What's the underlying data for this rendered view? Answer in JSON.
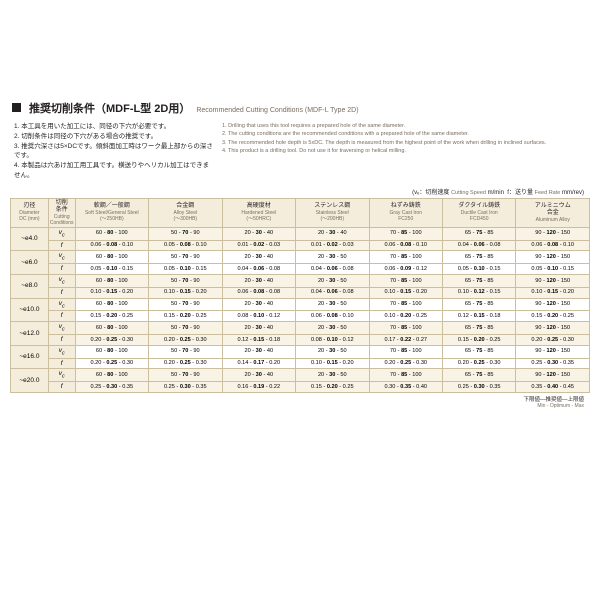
{
  "title": {
    "jp": "推奨切削条件（MDF-L型 2D用）",
    "en": "Recommended Cutting Conditions (MDF-L Type 2D)"
  },
  "notes_jp": [
    "1. 本工具を用いた加工には、同径の下穴が必要です。",
    "2. 切削条件は同径の下穴がある場合の推奨です。",
    "3. 推奨穴深さは5×DCです。傾斜面加工時はワーク最上部からの深さです。",
    "4. 本製品は穴あけ加工用工具です。横送りやヘリカル加工はできません。"
  ],
  "notes_en": [
    "1. Drilling that uses this tool requires a prepared hole of the same diameter.",
    "2. The cutting conditions are the recommended conditions with a prepared hole of the same diameter.",
    "3. The recommended hole depth is 5xDC. The depth is measured from the highest point of the work when drilling in inclined surfaces.",
    "4. This product is a drilling tool. Do not use it for traversing or helical milling."
  ],
  "legend": {
    "vc_jp": "vₑ：切削速度",
    "vc_en": "Cutting Speed",
    "vc_unit": "m/min",
    "f_jp": "f：送り量",
    "f_en": "Feed Rate",
    "f_unit": "mm/rev"
  },
  "columns": [
    {
      "jp": "刃径",
      "en": "Diameter",
      "sub": "DC (mm)",
      "cls": "col-dc"
    },
    {
      "jp": "切削\n条件",
      "en": "Cutting\nConditions",
      "cls": "col-cc"
    },
    {
      "jp": "軟鋼／一般鋼",
      "en": "Soft Steel/General Steel",
      "sub": "(～250HB)",
      "cls": "col-m"
    },
    {
      "jp": "合金鋼",
      "en": "Alloy Steel",
      "sub": "(～300HB)",
      "cls": "col-m"
    },
    {
      "jp": "高硬度材",
      "en": "Hardened Steel",
      "sub": "(～50HRC)",
      "cls": "col-m"
    },
    {
      "jp": "ステンレス鋼",
      "en": "Stainless Steel",
      "sub": "(～200HB)",
      "cls": "col-m"
    },
    {
      "jp": "ねずみ鋳鉄",
      "en": "Gray Cast Iron",
      "sub": "FC250",
      "cls": "col-m"
    },
    {
      "jp": "ダクタイル鋳鉄",
      "en": "Ductile Cast Iron",
      "sub": "FCD450",
      "cls": "col-m"
    },
    {
      "jp": "アルミニウム\n合金",
      "en": "Aluminum Alloy",
      "cls": "col-m"
    }
  ],
  "rows": [
    {
      "dia": "~e4.0",
      "vc": [
        "60 - 80 - 100",
        "50 - 70 - 90",
        "20 - 30 - 40",
        "20 - 30 - 40",
        "70 - 85 - 100",
        "65 - 75 - 85",
        "90 - 120 - 150"
      ],
      "f": [
        "0.06 - 0.08 - 0.10",
        "0.05 - 0.08 - 0.10",
        "0.01 - 0.02 - 0.03",
        "0.01 - 0.02 - 0.03",
        "0.06 - 0.08 - 0.10",
        "0.04 - 0.06 - 0.08",
        "0.06 - 0.08 - 0.10"
      ]
    },
    {
      "dia": "~e6.0",
      "vc": [
        "60 - 80 - 100",
        "50 - 70 - 90",
        "20 - 30 - 40",
        "20 - 30 - 50",
        "70 - 85 - 100",
        "65 - 75 - 85",
        "90 - 120 - 150"
      ],
      "f": [
        "0.05 - 0.10 - 0.15",
        "0.05 - 0.10 - 0.15",
        "0.04 - 0.06 - 0.08",
        "0.04 - 0.06 - 0.08",
        "0.06 - 0.09 - 0.12",
        "0.05 - 0.10 - 0.15",
        "0.05 - 0.10 - 0.15"
      ]
    },
    {
      "dia": "~e8.0",
      "vc": [
        "60 - 80 - 100",
        "50 - 70 - 90",
        "20 - 30 - 40",
        "20 - 30 - 50",
        "70 - 85 - 100",
        "65 - 75 - 85",
        "90 - 120 - 150"
      ],
      "f": [
        "0.10 - 0.15 - 0.20",
        "0.10 - 0.15 - 0.20",
        "0.06 - 0.08 - 0.08",
        "0.04 - 0.06 - 0.08",
        "0.10 - 0.15 - 0.20",
        "0.10 - 0.12 - 0.15",
        "0.10 - 0.15 - 0.20"
      ]
    },
    {
      "dia": "~e10.0",
      "vc": [
        "60 - 80 - 100",
        "50 - 70 - 90",
        "20 - 30 - 40",
        "20 - 30 - 50",
        "70 - 85 - 100",
        "65 - 75 - 85",
        "90 - 120 - 150"
      ],
      "f": [
        "0.15 - 0.20 - 0.25",
        "0.15 - 0.20 - 0.25",
        "0.08 - 0.10 - 0.12",
        "0.06 - 0.08 - 0.10",
        "0.10 - 0.20 - 0.25",
        "0.12 - 0.15 - 0.18",
        "0.15 - 0.20 - 0.25"
      ]
    },
    {
      "dia": "~e12.0",
      "vc": [
        "60 - 80 - 100",
        "50 - 70 - 90",
        "20 - 30 - 40",
        "20 - 30 - 50",
        "70 - 85 - 100",
        "65 - 75 - 85",
        "90 - 120 - 150"
      ],
      "f": [
        "0.20 - 0.25 - 0.30",
        "0.20 - 0.25 - 0.30",
        "0.12 - 0.15 - 0.18",
        "0.08 - 0.10 - 0.12",
        "0.17 - 0.22 - 0.27",
        "0.15 - 0.20 - 0.25",
        "0.20 - 0.25 - 0.30"
      ]
    },
    {
      "dia": "~e16.0",
      "vc": [
        "60 - 80 - 100",
        "50 - 70 - 90",
        "20 - 30 - 40",
        "20 - 30 - 50",
        "70 - 85 - 100",
        "65 - 75 - 85",
        "90 - 120 - 150"
      ],
      "f": [
        "0.20 - 0.25 - 0.30",
        "0.20 - 0.25 - 0.30",
        "0.14 - 0.17 - 0.20",
        "0.10 - 0.15 - 0.20",
        "0.20 - 0.25 - 0.30",
        "0.20 - 0.25 - 0.30",
        "0.25 - 0.30 - 0.35"
      ]
    },
    {
      "dia": "~e20.0",
      "vc": [
        "60 - 80 - 100",
        "50 - 70 - 90",
        "20 - 30 - 40",
        "20 - 30 - 50",
        "70 - 85 - 100",
        "65 - 75 - 85",
        "90 - 120 - 150"
      ],
      "f": [
        "0.25 - 0.30 - 0.35",
        "0.25 - 0.30 - 0.35",
        "0.16 - 0.19 - 0.22",
        "0.15 - 0.20 - 0.25",
        "0.30 - 0.35 - 0.40",
        "0.25 - 0.30 - 0.35",
        "0.35 - 0.40 - 0.45"
      ]
    }
  ],
  "below": {
    "jp": "下限値―推奨値―上限値",
    "en": "Min - Optimum - Max"
  }
}
